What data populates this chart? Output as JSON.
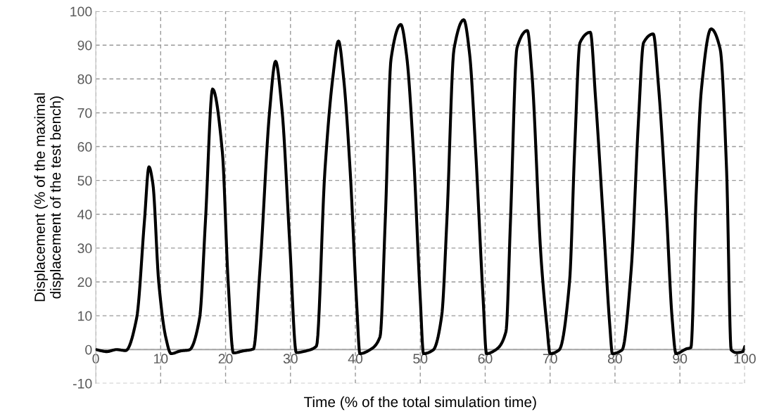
{
  "chart_data": {
    "type": "line",
    "xlabel": "Time (% of the total simulation time)",
    "ylabel": "Displacement (% of the maximal\ndisplacement of the test bench)",
    "xlim": [
      0,
      100
    ],
    "ylim": [
      -10,
      100
    ],
    "xticks": [
      0,
      10,
      20,
      30,
      40,
      50,
      60,
      70,
      80,
      90,
      100
    ],
    "yticks": [
      -10,
      0,
      10,
      20,
      30,
      40,
      50,
      60,
      70,
      80,
      90,
      100
    ],
    "grid": true,
    "line_style": "solid",
    "marker": "none",
    "series": [
      {
        "color": "#000000",
        "x": [
          0,
          1.7,
          3.2,
          4.6,
          6.3,
          7.5,
          8.2,
          8.8,
          9.7,
          10.8,
          11.6,
          13.1,
          14.4,
          16.0,
          16.9,
          18.0,
          19.5,
          20.4,
          21.2,
          22.7,
          24.3,
          25.3,
          26.8,
          27.7,
          28.7,
          29.9,
          30.9,
          32.4,
          34.0,
          35.3,
          36.5,
          37.4,
          38.2,
          39.2,
          40.2,
          40.7,
          42.3,
          43.8,
          44.6,
          45.5,
          47.0,
          47.9,
          48.9,
          50.0,
          50.5,
          52.0,
          53.3,
          54.1,
          55.2,
          56.7,
          57.6,
          58.5,
          59.7,
          60.2,
          61.6,
          63.2,
          63.9,
          64.9,
          66.5,
          67.2,
          68.6,
          69.5,
          70.0,
          71.4,
          73.0,
          73.8,
          74.6,
          76.2,
          77.0,
          78.2,
          79.2,
          79.6,
          81.1,
          82.5,
          83.6,
          84.4,
          85.9,
          86.7,
          87.9,
          88.8,
          89.4,
          91.0,
          91.7,
          92.5,
          93.3,
          94.8,
          96.2,
          97.2,
          97.9,
          98.7,
          99.7,
          100
        ],
        "values": [
          0,
          -0.6,
          0,
          -0.3,
          9.3,
          38,
          54,
          49,
          20,
          3.5,
          -1.2,
          -0.4,
          -0.1,
          9.3,
          38,
          77,
          58.5,
          20,
          -1.0,
          -0.4,
          0.2,
          23.7,
          70.8,
          85.2,
          70.8,
          31,
          -0.9,
          -0.4,
          1,
          52.7,
          80,
          91.2,
          80,
          52.7,
          13.6,
          -1.2,
          0,
          3.8,
          38,
          86,
          96.1,
          86.8,
          59.9,
          15,
          -1.2,
          -0.1,
          10,
          38.2,
          88.9,
          97.5,
          87.4,
          59.9,
          14.3,
          -1.2,
          -0.1,
          5.3,
          38.2,
          89.2,
          94.3,
          81.6,
          27.4,
          7.1,
          -1.2,
          -0.1,
          20.1,
          59.9,
          90.7,
          93.8,
          74.4,
          38.2,
          7.1,
          -1.2,
          -0.1,
          23.7,
          67.1,
          90.7,
          93.3,
          78,
          41.8,
          9.3,
          -1.2,
          0.2,
          0.6,
          45.4,
          76.6,
          94.8,
          88.9,
          52.7,
          -0.1,
          -0.9,
          -0.6,
          0.9
        ]
      }
    ]
  }
}
